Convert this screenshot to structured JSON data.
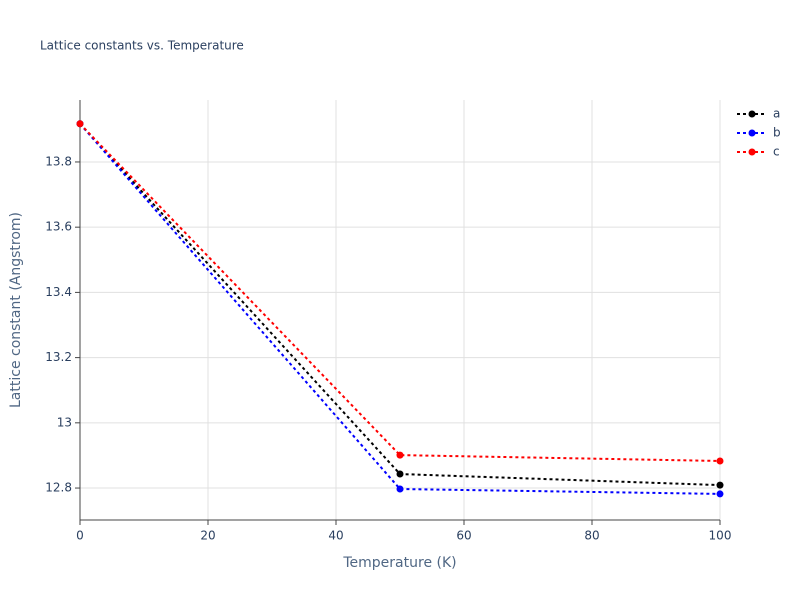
{
  "chart_data": {
    "type": "line",
    "title": "Lattice constants vs. Temperature",
    "xlabel": "Temperature (K)",
    "ylabel": "Lattice constant (Angstrom)",
    "x": [
      0,
      50,
      100
    ],
    "series": [
      {
        "name": "a",
        "color": "#000000",
        "values": [
          13.917,
          12.843,
          12.809
        ]
      },
      {
        "name": "b",
        "color": "#0000ff",
        "values": [
          13.917,
          12.797,
          12.782
        ]
      },
      {
        "name": "c",
        "color": "#ff0000",
        "values": [
          13.917,
          12.901,
          12.883
        ]
      }
    ],
    "xlim": [
      0,
      100
    ],
    "xticks": [
      0,
      20,
      40,
      60,
      80,
      100
    ],
    "ylim": [
      12.702,
      13.99
    ],
    "yticks": [
      12.8,
      13,
      13.2,
      13.4,
      13.6,
      13.8
    ],
    "grid": true,
    "legend": "top-right"
  }
}
